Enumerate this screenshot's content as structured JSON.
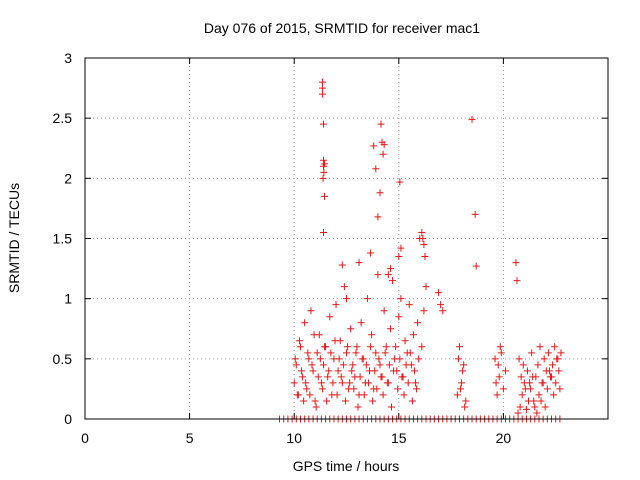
{
  "chart_data": {
    "type": "scatter",
    "title": "Day 076 of 2015, SRMTID for receiver mac1",
    "xlabel": "GPS time / hours",
    "ylabel": "SRMTID / TECUs",
    "xlim": [
      0,
      25
    ],
    "ylim": [
      0,
      3
    ],
    "x_ticks": [
      0,
      5,
      10,
      15,
      20
    ],
    "x_tick_labels": [
      "0",
      "5",
      "10",
      "15",
      "20"
    ],
    "y_ticks": [
      0,
      0.5,
      1,
      1.5,
      2,
      2.5,
      3
    ],
    "y_tick_labels": [
      "0",
      "0.5",
      "1",
      "1.5",
      "2",
      "2.5",
      "3"
    ],
    "grid": true,
    "marker": "plus",
    "color": "#e41a1c",
    "series": [
      {
        "name": "SRMTID",
        "x": [
          9.3,
          9.5,
          9.7,
          9.9,
          10.1,
          10.3,
          10.5,
          10.7,
          10.9,
          11.1,
          11.3,
          11.5,
          11.7,
          11.9,
          12.1,
          12.3,
          12.5,
          12.7,
          12.9,
          13.1,
          13.3,
          13.5,
          13.7,
          13.9,
          14.1,
          14.3,
          14.5,
          14.7,
          14.9,
          15.1,
          15.3,
          15.5,
          15.7,
          15.9,
          16.1,
          16.3,
          16.5,
          16.7,
          16.9,
          17.1,
          17.3,
          17.5,
          17.7,
          17.9,
          18.1,
          18.3,
          18.5,
          18.7,
          18.9,
          19.1,
          19.3,
          19.5,
          19.7,
          19.9,
          20.1,
          20.3,
          20.5,
          20.7,
          20.9,
          21.1,
          21.3,
          21.5,
          21.7,
          21.9,
          22.1,
          22.3,
          22.5,
          22.7,
          10.0,
          10.1,
          10.2,
          10.3,
          10.4,
          10.5,
          10.6,
          10.7,
          10.8,
          10.9,
          11.0,
          11.1,
          11.2,
          11.3,
          11.4,
          11.5,
          11.6,
          11.7,
          11.8,
          11.9,
          12.0,
          12.1,
          12.2,
          12.3,
          12.4,
          12.5,
          12.6,
          12.7,
          12.8,
          12.9,
          13.0,
          13.1,
          13.2,
          13.3,
          13.4,
          13.5,
          13.6,
          13.7,
          13.8,
          13.9,
          14.0,
          14.1,
          14.2,
          14.3,
          14.4,
          14.5,
          14.6,
          14.7,
          14.8,
          14.9,
          15.0,
          15.1,
          15.2,
          15.3,
          15.4,
          15.5,
          15.6,
          15.7,
          15.8,
          15.9,
          16.0,
          16.1,
          16.2,
          16.3,
          10.05,
          10.15,
          10.25,
          10.35,
          10.45,
          10.55,
          10.65,
          10.75,
          10.85,
          10.95,
          11.05,
          11.15,
          11.25,
          11.35,
          11.45,
          11.55,
          11.65,
          11.75,
          11.85,
          11.95,
          12.05,
          12.15,
          12.25,
          12.35,
          12.45,
          12.55,
          12.65,
          12.75,
          12.85,
          12.95,
          13.05,
          13.15,
          13.25,
          13.35,
          13.45,
          13.55,
          13.65,
          13.75,
          13.85,
          13.95,
          14.05,
          14.15,
          14.25,
          14.35,
          14.45,
          14.55,
          14.65,
          14.75,
          14.85,
          14.95,
          15.05,
          15.15,
          15.25,
          15.35,
          15.45,
          15.55,
          15.65,
          15.75,
          15.85,
          15.95,
          11.35,
          11.35,
          11.35,
          11.4,
          11.4,
          11.4,
          11.45,
          11.38,
          11.42,
          11.4,
          11.45,
          13.8,
          14.15,
          14.2,
          14.25,
          14.3,
          13.9,
          14.0,
          14.1,
          13.65,
          14.5,
          15.05,
          15.1,
          15.0,
          14.6,
          13.1,
          12.5,
          12.3,
          16.1,
          16.15,
          16.2,
          16.25,
          18.5,
          18.65,
          18.7,
          20.6,
          20.65,
          16.9,
          17.0,
          17.1,
          17.8,
          17.9,
          18.0,
          18.1,
          18.2,
          19.6,
          19.7,
          19.8,
          19.9,
          20.0,
          20.1,
          17.85,
          17.95,
          18.05,
          18.15,
          19.65,
          19.75,
          19.85,
          20.7,
          20.8,
          20.9,
          21.0,
          21.1,
          21.2,
          21.3,
          21.4,
          21.5,
          21.6,
          21.7,
          21.8,
          21.9,
          22.0,
          22.1,
          22.2,
          22.3,
          22.4,
          22.5,
          22.6,
          22.7,
          20.75,
          20.85,
          20.95,
          21.05,
          21.15,
          21.25,
          21.35,
          21.45,
          21.55,
          21.65,
          21.75,
          21.85,
          21.95,
          22.05,
          22.15,
          22.25,
          22.35,
          22.45,
          22.55,
          22.65,
          22.75
        ],
        "y": [
          0,
          0,
          0,
          0,
          0,
          0,
          0,
          0,
          0,
          0,
          0,
          0,
          0,
          0,
          0,
          0,
          0,
          0,
          0,
          0,
          0,
          0,
          0,
          0,
          0,
          0,
          0,
          0,
          0,
          0,
          0,
          0,
          0,
          0,
          0,
          0,
          0,
          0,
          0,
          0,
          0,
          0,
          0,
          0,
          0,
          0,
          0,
          0,
          0,
          0,
          0,
          0,
          0,
          0,
          0,
          0,
          0,
          0,
          0,
          0,
          0,
          0,
          0,
          0,
          0,
          0,
          0,
          0,
          0.3,
          0.45,
          0.2,
          0.6,
          0.35,
          0.8,
          0.25,
          0.5,
          0.9,
          0.4,
          0.15,
          0.55,
          0.7,
          0.3,
          0.45,
          0.6,
          0.35,
          0.85,
          0.2,
          0.5,
          0.95,
          0.4,
          0.65,
          0.3,
          1.1,
          0.55,
          0.25,
          0.75,
          0.45,
          0.35,
          0.6,
          0.2,
          0.8,
          0.5,
          0.3,
          1.0,
          0.4,
          0.7,
          0.25,
          0.55,
          1.2,
          0.45,
          0.35,
          0.9,
          0.6,
          0.3,
          0.75,
          1.15,
          0.5,
          0.4,
          0.85,
          1.0,
          0.35,
          0.65,
          0.55,
          0.95,
          0.45,
          0.7,
          0.3,
          0.8,
          1.5,
          0.6,
          0.9,
          1.1,
          0.5,
          0.2,
          0.65,
          0.4,
          0.15,
          0.3,
          0.55,
          0.2,
          0.45,
          0.7,
          0.1,
          0.35,
          0.5,
          0.25,
          0.6,
          0.15,
          0.4,
          0.55,
          0.3,
          0.65,
          0.2,
          0.5,
          0.35,
          0.45,
          0.15,
          0.6,
          0.3,
          0.4,
          0.25,
          0.55,
          0.1,
          0.35,
          0.5,
          0.2,
          0.45,
          0.3,
          0.6,
          0.15,
          0.4,
          0.25,
          0.5,
          0.35,
          0.2,
          0.55,
          0.3,
          0.45,
          0.1,
          0.4,
          0.6,
          0.25,
          0.5,
          0.35,
          0.2,
          0.45,
          0.3,
          0.55,
          0.15,
          0.4,
          0.25,
          0.5,
          2.8,
          2.75,
          2.7,
          2.45,
          2.15,
          2.1,
          1.85,
          2.0,
          2.05,
          1.55,
          2.12,
          2.27,
          2.45,
          2.3,
          2.2,
          2.28,
          2.08,
          1.68,
          1.88,
          1.38,
          1.2,
          1.97,
          1.42,
          1.35,
          1.25,
          1.3,
          1.0,
          1.28,
          1.55,
          1.5,
          1.45,
          1.35,
          2.49,
          1.7,
          1.27,
          1.3,
          1.15,
          1.05,
          0.95,
          0.9,
          0.2,
          0.6,
          0.3,
          0.45,
          0.15,
          0.5,
          0.2,
          0.35,
          0.55,
          0.25,
          0.4,
          0.5,
          0.25,
          0.4,
          0.1,
          0.3,
          0.45,
          0.6,
          0.05,
          0.1,
          0.2,
          0.3,
          0.08,
          0.15,
          0.25,
          0.35,
          0.1,
          0.05,
          0.2,
          0.15,
          0.3,
          0.1,
          0.25,
          0.4,
          0.35,
          0.2,
          0.3,
          0.5,
          0.25,
          0.5,
          0.35,
          0.45,
          0.25,
          0.4,
          0.3,
          0.55,
          0.15,
          0.35,
          0.45,
          0.6,
          0.3,
          0.5,
          0.4,
          0.55,
          0.35,
          0.45,
          0.6,
          0.5,
          0.4,
          0.55
        ]
      }
    ]
  }
}
